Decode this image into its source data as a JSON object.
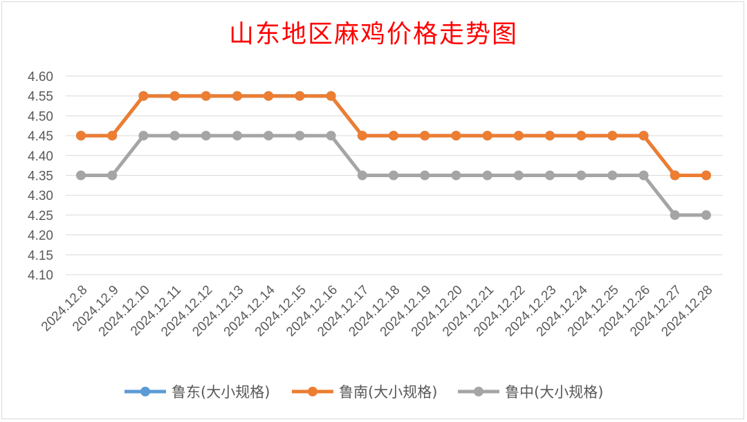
{
  "chart_data": {
    "type": "line",
    "title": "山东地区麻鸡价格走势图",
    "xlabel": "",
    "ylabel": "",
    "ylim": [
      4.1,
      4.6
    ],
    "yticks": [
      "4.10",
      "4.15",
      "4.20",
      "4.25",
      "4.30",
      "4.35",
      "4.40",
      "4.45",
      "4.50",
      "4.55",
      "4.60"
    ],
    "grid": true,
    "legend_position": "bottom",
    "categories": [
      "2024.12.8",
      "2024.12.9",
      "2024.12.10",
      "2024.12.11",
      "2024.12.12",
      "2024.12.13",
      "2024.12.14",
      "2024.12.15",
      "2024.12.16",
      "2024.12.17",
      "2024.12.18",
      "2024.12.19",
      "2024.12.20",
      "2024.12.21",
      "2024.12.22",
      "2024.12.23",
      "2024.12.24",
      "2024.12.25",
      "2024.12.26",
      "2024.12.27",
      "2024.12.28"
    ],
    "series": [
      {
        "name": "鲁东(大小规格)",
        "color": "#5b9bd5",
        "values": [
          4.45,
          4.45,
          4.55,
          4.55,
          4.55,
          4.55,
          4.55,
          4.55,
          4.55,
          4.45,
          4.45,
          4.45,
          4.45,
          4.45,
          4.45,
          4.45,
          4.45,
          4.45,
          4.45,
          4.35,
          4.35
        ]
      },
      {
        "name": "鲁南(大小规格)",
        "color": "#ed7d31",
        "values": [
          4.45,
          4.45,
          4.55,
          4.55,
          4.55,
          4.55,
          4.55,
          4.55,
          4.55,
          4.45,
          4.45,
          4.45,
          4.45,
          4.45,
          4.45,
          4.45,
          4.45,
          4.45,
          4.45,
          4.35,
          4.35
        ]
      },
      {
        "name": "鲁中(大小规格)",
        "color": "#a5a5a5",
        "values": [
          4.35,
          4.35,
          4.45,
          4.45,
          4.45,
          4.45,
          4.45,
          4.45,
          4.45,
          4.35,
          4.35,
          4.35,
          4.35,
          4.35,
          4.35,
          4.35,
          4.35,
          4.35,
          4.35,
          4.25,
          4.25
        ]
      }
    ]
  }
}
